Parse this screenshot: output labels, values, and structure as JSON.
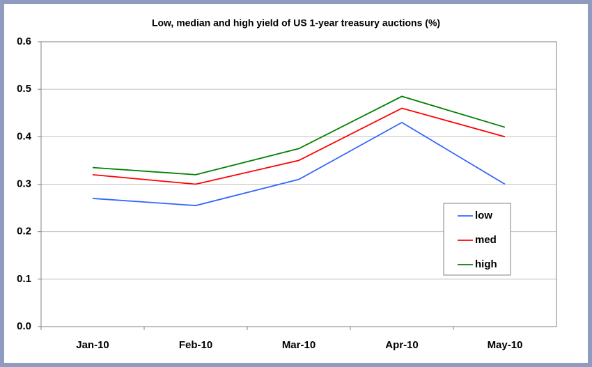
{
  "chart_data": {
    "type": "line",
    "title": "Low, median and high yield of US 1-year treasury auctions (%)",
    "categories": [
      "Jan-10",
      "Feb-10",
      "Mar-10",
      "Apr-10",
      "May-10"
    ],
    "series": [
      {
        "name": "low",
        "color": "#3366ff",
        "values": [
          0.27,
          0.255,
          0.31,
          0.43,
          0.3
        ]
      },
      {
        "name": "med",
        "color": "#ff0000",
        "values": [
          0.32,
          0.3,
          0.35,
          0.46,
          0.4
        ]
      },
      {
        "name": "high",
        "color": "#008000",
        "values": [
          0.335,
          0.32,
          0.375,
          0.485,
          0.42
        ]
      }
    ],
    "ylim": [
      0,
      0.6
    ],
    "yticks": [
      {
        "value": 0,
        "label": "0.0"
      },
      0.1,
      0.2,
      0.3,
      0.4,
      0.5,
      0.6
    ],
    "grid": true,
    "legend": "right"
  }
}
